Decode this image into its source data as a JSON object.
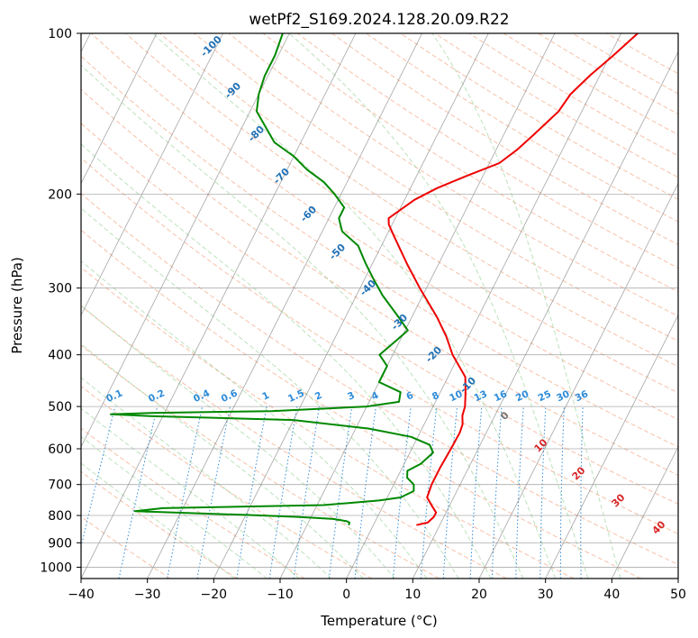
{
  "chart_data": {
    "type": "line",
    "title": "wetPf2_S169.2024.128.20.09.R22",
    "xlabel": "Temperature (°C)",
    "ylabel": "Pressure (hPa)",
    "xlim": [
      -40,
      50
    ],
    "ylim": [
      1050,
      100
    ],
    "y_scale": "log",
    "grid": true,
    "x_ticks": [
      -40,
      -30,
      -20,
      -10,
      0,
      10,
      20,
      30,
      40,
      50
    ],
    "x_tick_labels": [
      "−40",
      "−30",
      "−20",
      "−10",
      "0",
      "10",
      "20",
      "30",
      "40",
      "50"
    ],
    "y_ticks": [
      100,
      200,
      300,
      400,
      500,
      600,
      700,
      800,
      900,
      1000
    ],
    "y_tick_labels": [
      "100",
      "200",
      "300",
      "400",
      "500",
      "600",
      "700",
      "800",
      "900",
      "1000"
    ],
    "skew_factor": 0.46,
    "series": [
      {
        "id": "temperature",
        "color": "#ee0000",
        "points": [
          [
            834,
            6.5
          ],
          [
            825,
            8
          ],
          [
            805,
            8.5
          ],
          [
            790,
            8.5
          ],
          [
            770,
            7.5
          ],
          [
            740,
            6
          ],
          [
            700,
            5.7
          ],
          [
            650,
            5.7
          ],
          [
            600,
            5.9
          ],
          [
            560,
            6
          ],
          [
            540,
            5.8
          ],
          [
            520,
            5.1
          ],
          [
            500,
            4.8
          ],
          [
            470,
            3.8
          ],
          [
            440,
            2.6
          ],
          [
            400,
            -1
          ],
          [
            370,
            -3.3
          ],
          [
            340,
            -6.2
          ],
          [
            300,
            -11
          ],
          [
            270,
            -14.8
          ],
          [
            240,
            -18.8
          ],
          [
            228,
            -20.5
          ],
          [
            222,
            -21
          ],
          [
            205,
            -18.5
          ],
          [
            195,
            -16
          ],
          [
            185,
            -12.5
          ],
          [
            175,
            -8.5
          ],
          [
            165,
            -6.8
          ],
          [
            155,
            -5.5
          ],
          [
            140,
            -3.5
          ],
          [
            130,
            -3
          ],
          [
            120,
            -1.5
          ],
          [
            110,
            0.5
          ],
          [
            100,
            2.5
          ]
        ]
      },
      {
        "id": "dewpoint",
        "color": "#008800",
        "points": [
          [
            834,
            -3.7
          ],
          [
            825,
            -3.8
          ],
          [
            820,
            -4.3
          ],
          [
            812,
            -6.5
          ],
          [
            805,
            -12
          ],
          [
            798,
            -20
          ],
          [
            790,
            -31
          ],
          [
            785,
            -37
          ],
          [
            775,
            -33
          ],
          [
            765,
            -9
          ],
          [
            750,
            -1
          ],
          [
            740,
            2
          ],
          [
            720,
            3.5
          ],
          [
            700,
            3
          ],
          [
            680,
            1.5
          ],
          [
            660,
            1
          ],
          [
            640,
            2.5
          ],
          [
            610,
            3.5
          ],
          [
            590,
            2.4
          ],
          [
            570,
            -1
          ],
          [
            550,
            -8
          ],
          [
            530,
            -20
          ],
          [
            521,
            -42
          ],
          [
            517,
            -48
          ],
          [
            514,
            -42
          ],
          [
            510,
            -24
          ],
          [
            500,
            -10
          ],
          [
            490,
            -5.5
          ],
          [
            470,
            -6
          ],
          [
            450,
            -10
          ],
          [
            420,
            -10
          ],
          [
            400,
            -12
          ],
          [
            375,
            -10.5
          ],
          [
            360,
            -9.6
          ],
          [
            340,
            -12
          ],
          [
            310,
            -16
          ],
          [
            290,
            -18.5
          ],
          [
            270,
            -21
          ],
          [
            250,
            -23.5
          ],
          [
            235,
            -27
          ],
          [
            222,
            -28.5
          ],
          [
            212,
            -28.5
          ],
          [
            200,
            -31
          ],
          [
            190,
            -33.5
          ],
          [
            180,
            -37
          ],
          [
            170,
            -40
          ],
          [
            160,
            -44
          ],
          [
            140,
            -49
          ],
          [
            130,
            -50
          ],
          [
            120,
            -50.5
          ],
          [
            110,
            -50.5
          ],
          [
            100,
            -51
          ]
        ]
      }
    ],
    "mixing_ratio_labels": [
      "0.1",
      "0.2",
      "0.4",
      "0.6",
      "1",
      "1.5",
      "2",
      "3",
      "4",
      "6",
      "8",
      "10",
      "13",
      "16",
      "20",
      "25",
      "30",
      "36"
    ],
    "mixing_ratio_values": [
      0.1,
      0.2,
      0.4,
      0.6,
      1,
      1.5,
      2,
      3,
      4,
      6,
      8,
      10,
      13,
      16,
      20,
      25,
      30,
      36
    ],
    "moist_adiabat_labels": [
      "-100",
      "-90",
      "-80",
      "-70",
      "-60",
      "-50",
      "-40",
      "-30",
      "-20",
      "-10",
      "0",
      "10",
      "20",
      "30",
      "40"
    ]
  }
}
